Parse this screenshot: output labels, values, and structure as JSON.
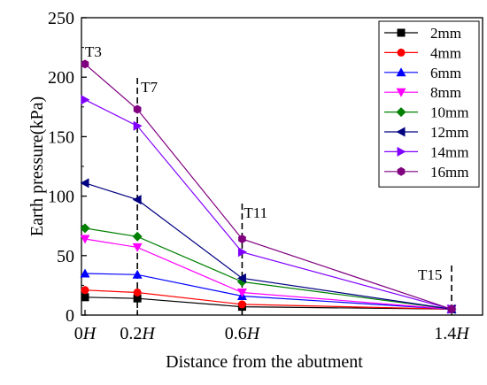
{
  "chart_data": {
    "type": "line",
    "xlabel": "Distance from the abutment",
    "ylabel": "Earth pressure(kPa)",
    "ylim": [
      0,
      250
    ],
    "xlim": [
      0,
      1.4
    ],
    "x": [
      0,
      0.2,
      0.6,
      1.4
    ],
    "x_tick_labels": [
      {
        "value": 0,
        "num": "0",
        "unit": "H"
      },
      {
        "value": 0.2,
        "num": "0.2",
        "unit": "H"
      },
      {
        "value": 0.6,
        "num": "0.6",
        "unit": "H"
      },
      {
        "value": 1.4,
        "num": "1.4",
        "unit": "H"
      }
    ],
    "y_ticks": [
      0,
      50,
      100,
      150,
      200,
      250
    ],
    "legend_position": "top-right",
    "series": [
      {
        "name": "2mm",
        "color": "#000000",
        "marker": "square",
        "values": [
          15,
          14,
          7,
          5
        ]
      },
      {
        "name": "4mm",
        "color": "#ff0000",
        "marker": "circle",
        "values": [
          21,
          19,
          9,
          5
        ]
      },
      {
        "name": "6mm",
        "color": "#0000ff",
        "marker": "triangle-up",
        "values": [
          35,
          34,
          16,
          5
        ]
      },
      {
        "name": "8mm",
        "color": "#ff00ff",
        "marker": "triangle-down",
        "values": [
          64,
          57,
          19,
          5
        ]
      },
      {
        "name": "10mm",
        "color": "#008000",
        "marker": "diamond",
        "values": [
          73,
          66,
          28,
          5
        ]
      },
      {
        "name": "12mm",
        "color": "#000080",
        "marker": "triangle-left",
        "values": [
          111,
          97,
          31,
          5
        ]
      },
      {
        "name": "14mm",
        "color": "#8000ff",
        "marker": "triangle-right",
        "values": [
          181,
          159,
          53,
          5
        ]
      },
      {
        "name": "16mm",
        "color": "#800080",
        "marker": "hexagon",
        "values": [
          211,
          173,
          64,
          5
        ]
      }
    ],
    "annotations": [
      {
        "label": "T3",
        "x": 0,
        "y": 211
      },
      {
        "label": "T7",
        "x": 0.2,
        "y": 173
      },
      {
        "label": "T11",
        "x": 0.6,
        "y": 64
      },
      {
        "label": "T15",
        "x": 1.4,
        "y": 5
      }
    ]
  }
}
